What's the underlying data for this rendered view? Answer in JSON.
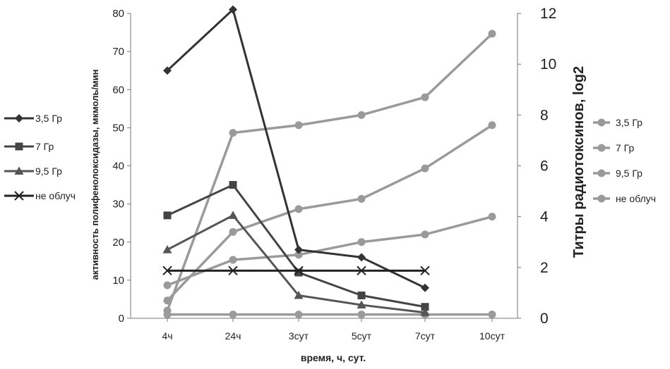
{
  "chart_data": {
    "type": "line",
    "xlabel": "время, ч, сут.",
    "ylabel_left": "активность полифенолоксидазы, мкмоль/мин",
    "ylabel_right": "Титры радиотоксинов, log2",
    "categories": [
      "4ч",
      "24ч",
      "3сут",
      "5сут",
      "7сут",
      "10сут"
    ],
    "ylim_left": [
      0,
      80
    ],
    "yticks_left": [
      0,
      10,
      20,
      30,
      40,
      50,
      60,
      70,
      80
    ],
    "ylim_right": [
      0,
      12
    ],
    "yticks_right": [
      0,
      2,
      4,
      6,
      8,
      10,
      12
    ],
    "grid": false,
    "legend_left": [
      "3,5 Гр",
      "7 Гр",
      "9,5 Гр",
      "не облуч"
    ],
    "legend_right": [
      "3,5 Гр",
      "7 Гр",
      "9,5 Гр",
      "не облуч"
    ],
    "series_left": [
      {
        "name": "3,5 Гр",
        "marker": "diamond",
        "color": "#333333",
        "values": [
          65,
          81,
          18,
          16,
          8,
          null
        ]
      },
      {
        "name": "7 Гр",
        "marker": "square",
        "color": "#444444",
        "values": [
          27,
          35,
          12,
          6,
          3,
          null
        ]
      },
      {
        "name": "9,5 Гр",
        "marker": "triangle",
        "color": "#555555",
        "values": [
          18,
          27,
          6,
          3.5,
          1.5,
          null
        ]
      },
      {
        "name": "не облуч",
        "marker": "x",
        "color": "#222222",
        "values": [
          12.5,
          12.5,
          12.5,
          12.5,
          12.5,
          null
        ]
      }
    ],
    "series_right": [
      {
        "name": "3,5 Гр",
        "marker": "circle",
        "color": "#9a9a9a",
        "values": [
          0.3,
          7.3,
          7.6,
          8.0,
          8.7,
          11.2
        ]
      },
      {
        "name": "7 Гр",
        "marker": "circle",
        "color": "#9a9a9a",
        "values": [
          0.7,
          3.4,
          4.3,
          4.7,
          5.9,
          7.6
        ]
      },
      {
        "name": "9,5 Гр",
        "marker": "circle",
        "color": "#9a9a9a",
        "values": [
          1.3,
          2.3,
          2.5,
          3.0,
          3.3,
          4.0
        ]
      },
      {
        "name": "не облуч",
        "marker": "circle",
        "color": "#9a9a9a",
        "values": [
          0.15,
          0.15,
          0.15,
          0.15,
          0.15,
          0.15
        ]
      }
    ]
  }
}
